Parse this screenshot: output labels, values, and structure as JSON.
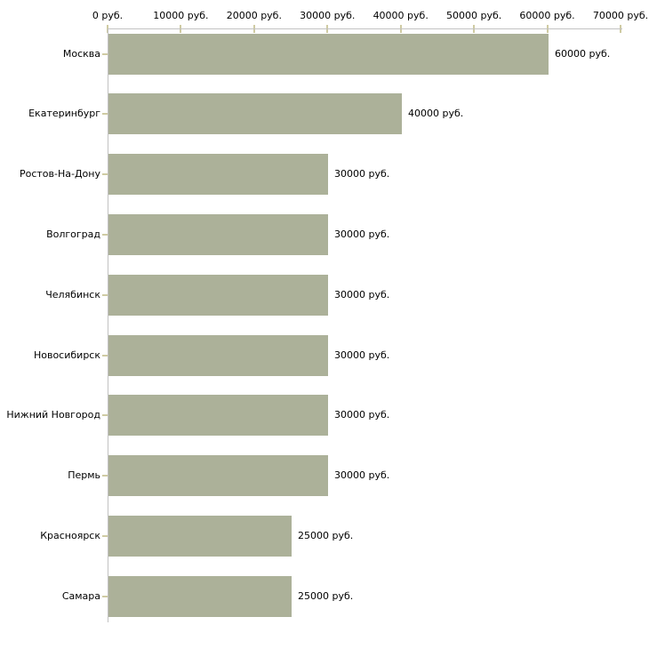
{
  "chart_data": {
    "type": "bar",
    "orientation": "horizontal",
    "title": "",
    "xlabel": "",
    "ylabel": "",
    "unit": "руб.",
    "categories": [
      "Москва",
      "Екатеринбург",
      "Ростов-На-Дону",
      "Волгоград",
      "Челябинск",
      "Новосибирск",
      "Нижний Новгород",
      "Пермь",
      "Красноярск",
      "Самара"
    ],
    "values": [
      60000,
      40000,
      30000,
      30000,
      30000,
      30000,
      30000,
      30000,
      25000,
      25000
    ],
    "bar_labels": [
      "60000 руб.",
      "40000 руб.",
      "30000 руб.",
      "30000 руб.",
      "30000 руб.",
      "30000 руб.",
      "30000 руб.",
      "30000 руб.",
      "25000 руб.",
      "25000 руб."
    ],
    "x_tick_values": [
      0,
      10000,
      20000,
      30000,
      40000,
      50000,
      60000,
      70000
    ],
    "x_tick_labels": [
      "0 руб.",
      "10000 руб.",
      "20000 руб.",
      "30000 руб.",
      "40000 руб.",
      "50000 руб.",
      "60000 руб.",
      "70000 руб."
    ],
    "xlim": [
      0,
      70000
    ],
    "grid": false,
    "legend": false,
    "colors": {
      "bar_fill": "#acb199",
      "axis_line": "#c2c2c2",
      "tick_mark": "#cfcba3",
      "text": "#000000",
      "background": "#ffffff"
    }
  }
}
